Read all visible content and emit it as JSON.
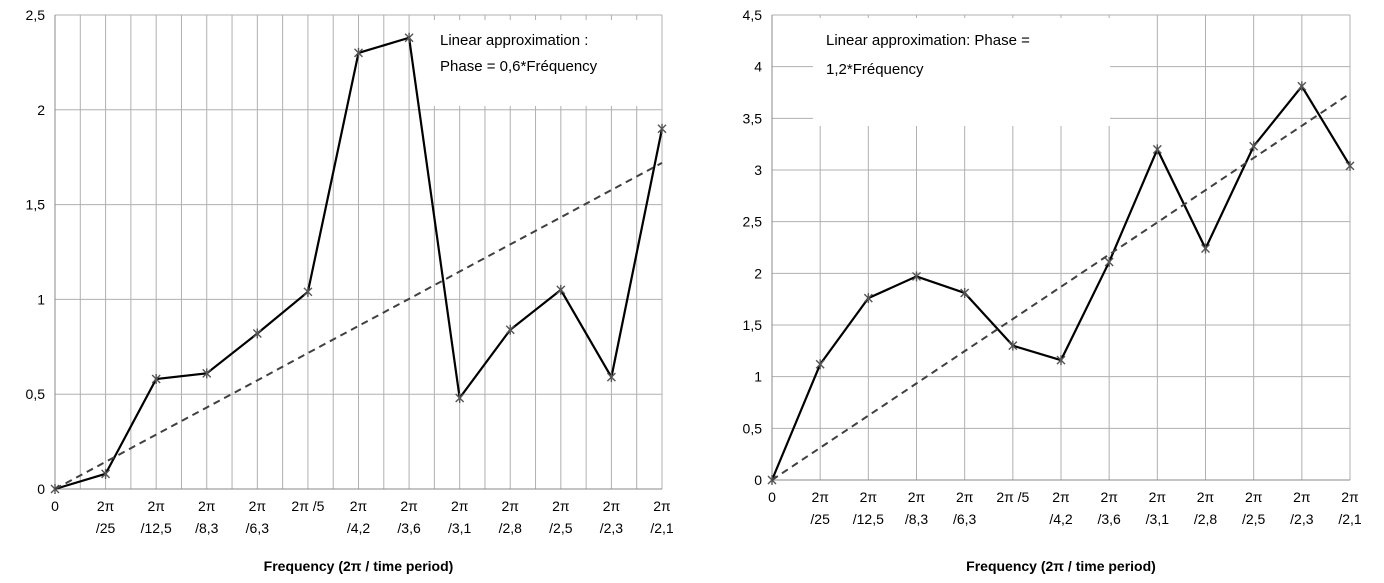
{
  "chart_data": [
    {
      "type": "line",
      "categories": [
        [
          "0"
        ],
        [
          "2π",
          "/25"
        ],
        [
          "2π",
          "/12,5"
        ],
        [
          "2π",
          "/8,3"
        ],
        [
          "2π",
          "/6,3"
        ],
        [
          "2π /5"
        ],
        [
          "2π",
          "/4,2"
        ],
        [
          "2π",
          "/3,6"
        ],
        [
          "2π",
          "/3,1"
        ],
        [
          "2π",
          "/2,8"
        ],
        [
          "2π",
          "/2,5"
        ],
        [
          "2π",
          "/2,3"
        ],
        [
          "2π",
          "/2,1"
        ]
      ],
      "series": [
        {
          "values": [
            0,
            0.08,
            0.58,
            0.61,
            0.82,
            1.04,
            2.3,
            2.38,
            0.48,
            0.84,
            1.05,
            0.59,
            1.9
          ],
          "color": "#000000",
          "style": "solid",
          "marker": "star"
        },
        {
          "values": [
            0,
            0.143,
            0.287,
            0.43,
            0.573,
            0.717,
            0.86,
            1.003,
            1.147,
            1.29,
            1.433,
            1.577,
            1.72
          ],
          "color": "#404040",
          "style": "dashed"
        }
      ],
      "annotation": [
        "Linear approximation :",
        "Phase = 0,6*Fréquency"
      ],
      "xlabel": "Frequency (2π / time period)",
      "yticks": [
        "0",
        "0,5",
        "1",
        "1,5",
        "2",
        "2,5"
      ],
      "ylim": [
        0,
        2.5
      ],
      "grid": true
    },
    {
      "type": "line",
      "categories": [
        [
          "0"
        ],
        [
          "2π",
          "/25"
        ],
        [
          "2π",
          "/12,5"
        ],
        [
          "2π",
          "/8,3"
        ],
        [
          "2π",
          "/6,3"
        ],
        [
          "2π /5"
        ],
        [
          "2π",
          "/4,2"
        ],
        [
          "2π",
          "/3,6"
        ],
        [
          "2π",
          "/3,1"
        ],
        [
          "2π",
          "/2,8"
        ],
        [
          "2π",
          "/2,5"
        ],
        [
          "2π",
          "/2,3"
        ],
        [
          "2π",
          "/2,1"
        ]
      ],
      "series": [
        {
          "values": [
            0,
            1.12,
            1.76,
            1.97,
            1.81,
            1.3,
            1.16,
            2.11,
            3.2,
            2.24,
            3.23,
            3.81,
            3.04
          ],
          "color": "#000000",
          "style": "solid",
          "marker": "star"
        },
        {
          "values": [
            0,
            0.312,
            0.623,
            0.935,
            1.247,
            1.558,
            1.87,
            2.182,
            2.493,
            2.805,
            3.117,
            3.428,
            3.74
          ],
          "color": "#404040",
          "style": "dashed"
        }
      ],
      "annotation": [
        "Linear approximation: Phase =",
        "1,2*Fréquency"
      ],
      "xlabel": "Frequency (2π / time period)",
      "yticks": [
        "0",
        "0,5",
        "1",
        "1,5",
        "2",
        "2,5",
        "3",
        "3,5",
        "4",
        "4,5"
      ],
      "ylim": [
        0,
        4.5
      ],
      "grid": true
    }
  ]
}
